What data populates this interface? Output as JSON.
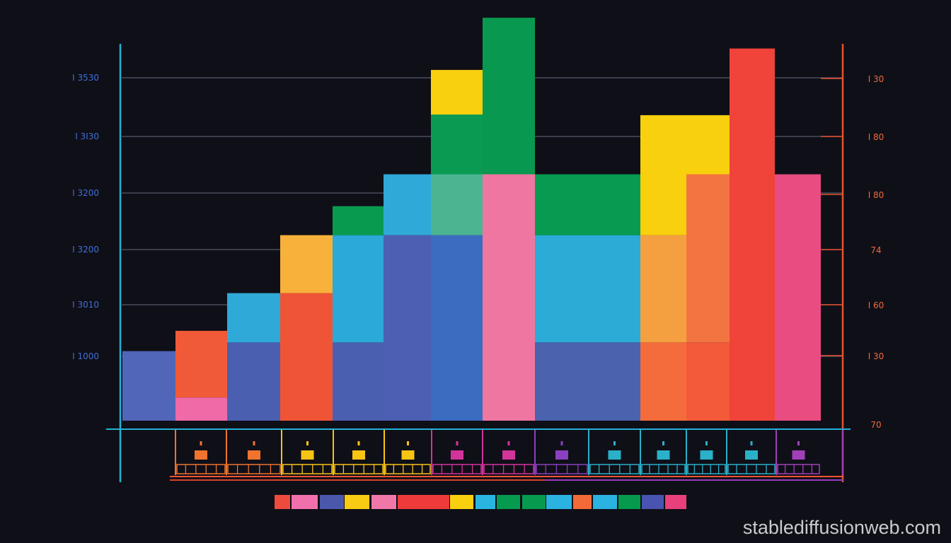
{
  "watermark": "stablediffusionweb.com",
  "colors": {
    "background": "#0f0f18",
    "left_axis": "#23b2d6",
    "right_axis": "#e8522e",
    "grid": "#6b7585",
    "left_tick_text": "#3f6fd8",
    "right_tick_text": "#f06a3a"
  },
  "chart_data": {
    "type": "bar",
    "stacked": true,
    "grid": true,
    "left_axis_ticks": [
      "I 3530",
      "I 3I30",
      "I 3200",
      "I 3200",
      "I 3010",
      "I 1000"
    ],
    "right_axis_ticks": [
      "I 30",
      "I 80",
      "I 80",
      "74",
      "I 60",
      "I 30",
      "70"
    ],
    "bars": [
      {
        "segments": [
          {
            "color": "#5166b8",
            "value": 1.2
          }
        ]
      },
      {
        "segments": [
          {
            "color": "#f06aa8",
            "value": 0.4
          },
          {
            "color": "#f05a38",
            "value": 1.15
          }
        ]
      },
      {
        "segments": [
          {
            "color": "#4a5fb0",
            "value": 1.35
          },
          {
            "color": "#2fa9d8",
            "value": 0.85
          }
        ]
      },
      {
        "segments": [
          {
            "color": "#f05436",
            "value": 2.2
          },
          {
            "color": "#f8b13a",
            "value": 1.0
          }
        ]
      },
      {
        "segments": [
          {
            "color": "#4a5fb0",
            "value": 1.35
          },
          {
            "color": "#2ba9d9",
            "value": 1.85
          },
          {
            "color": "#089b50",
            "value": 0.5
          }
        ]
      },
      {
        "segments": [
          {
            "color": "#4d5fb2",
            "value": 3.2
          },
          {
            "color": "#2fa9d8",
            "value": 1.05
          }
        ]
      },
      {
        "segments": [
          {
            "color": "#3a6cc0",
            "value": 3.2
          },
          {
            "color": "#4bb490",
            "value": 1.05
          },
          {
            "color": "#0a9a52",
            "value": 1.03
          },
          {
            "color": "#f8d00e",
            "value": 0.77
          }
        ]
      },
      {
        "segments": [
          {
            "color": "#ef76a0",
            "value": 4.25
          },
          {
            "color": "#08984f",
            "value": 2.7
          }
        ]
      },
      {
        "segments": [
          {
            "color": "#4b62ae",
            "value": 1.35
          },
          {
            "color": "#2cabd6",
            "value": 1.85
          },
          {
            "color": "#069b50",
            "value": 1.05
          }
        ]
      },
      {
        "segments": [
          {
            "color": "#4b62ae",
            "value": 1.35
          },
          {
            "color": "#2cabd6",
            "value": 1.85
          },
          {
            "color": "#069b50",
            "value": 1.05
          }
        ]
      },
      {
        "segments": [
          {
            "color": "#f46c3c",
            "value": 1.35
          },
          {
            "color": "#f4a040",
            "value": 1.85
          },
          {
            "color": "#f8d00e",
            "value": 2.07
          }
        ]
      },
      {
        "segments": [
          {
            "color": "#f25a3a",
            "value": 1.35
          },
          {
            "color": "#f27440",
            "value": 2.9
          },
          {
            "color": "#f8d00e",
            "value": 1.02
          }
        ]
      },
      {
        "segments": [
          {
            "color": "#f0433a",
            "value": 6.42
          }
        ]
      },
      {
        "segments": [
          {
            "color": "#e84c80",
            "value": 4.25
          }
        ]
      }
    ],
    "legend_swatch_colors": [
      "#ee4a3e",
      "#f070ac",
      "#4a58ac",
      "#f8cc12",
      "#f078a8",
      "#ee3a3a",
      "#ee3a3a",
      "#f8d00e",
      "#29b5e0",
      "#069a4e",
      "#069a4e",
      "#2ab2e0",
      "#f26a38",
      "#2ab2e0",
      "#059a4c",
      "#4954b0",
      "#e8407a"
    ]
  }
}
